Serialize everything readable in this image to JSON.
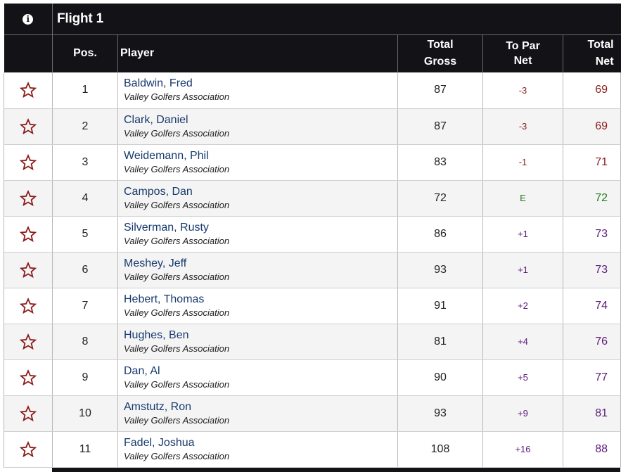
{
  "header": {
    "info_icon": "info-icon",
    "info_glyph": "i",
    "flight_title": "Flight 1"
  },
  "columns": {
    "pos": "Pos.",
    "player": "Player",
    "gross_line1": "Total",
    "gross_line2": "Gross",
    "par_line1": "To Par",
    "par_line2": "Net",
    "net_line1": "Total",
    "net_line2": "Net"
  },
  "colors": {
    "under_par": "#8b1a1a",
    "even_par": "#1f7a1f",
    "over_par": "#5a1a7a",
    "star": "#8b1a1a",
    "header_bg": "#131217",
    "player_link": "#173a6e"
  },
  "rows": [
    {
      "pos": "1",
      "name": "Baldwin, Fred",
      "club": "Valley Golfers Association",
      "gross": "87",
      "to_par": "-3",
      "net": "69",
      "status": "under"
    },
    {
      "pos": "2",
      "name": "Clark, Daniel",
      "club": "Valley Golfers Association",
      "gross": "87",
      "to_par": "-3",
      "net": "69",
      "status": "under"
    },
    {
      "pos": "3",
      "name": "Weidemann, Phil",
      "club": "Valley Golfers Association",
      "gross": "83",
      "to_par": "-1",
      "net": "71",
      "status": "under"
    },
    {
      "pos": "4",
      "name": "Campos, Dan",
      "club": "Valley Golfers Association",
      "gross": "72",
      "to_par": "E",
      "net": "72",
      "status": "even"
    },
    {
      "pos": "5",
      "name": "Silverman, Rusty",
      "club": "Valley Golfers Association",
      "gross": "86",
      "to_par": "+1",
      "net": "73",
      "status": "over"
    },
    {
      "pos": "6",
      "name": "Meshey, Jeff",
      "club": "Valley Golfers Association",
      "gross": "93",
      "to_par": "+1",
      "net": "73",
      "status": "over"
    },
    {
      "pos": "7",
      "name": "Hebert, Thomas",
      "club": "Valley Golfers Association",
      "gross": "91",
      "to_par": "+2",
      "net": "74",
      "status": "over"
    },
    {
      "pos": "8",
      "name": "Hughes, Ben",
      "club": "Valley Golfers Association",
      "gross": "81",
      "to_par": "+4",
      "net": "76",
      "status": "over"
    },
    {
      "pos": "9",
      "name": "Dan, Al",
      "club": "Valley Golfers Association",
      "gross": "90",
      "to_par": "+5",
      "net": "77",
      "status": "over"
    },
    {
      "pos": "10",
      "name": "Amstutz, Ron",
      "club": "Valley Golfers Association",
      "gross": "93",
      "to_par": "+9",
      "net": "81",
      "status": "over"
    },
    {
      "pos": "11",
      "name": "Fadel, Joshua",
      "club": "Valley Golfers Association",
      "gross": "108",
      "to_par": "+16",
      "net": "88",
      "status": "over"
    }
  ],
  "row_icon": "star-outline-icon"
}
